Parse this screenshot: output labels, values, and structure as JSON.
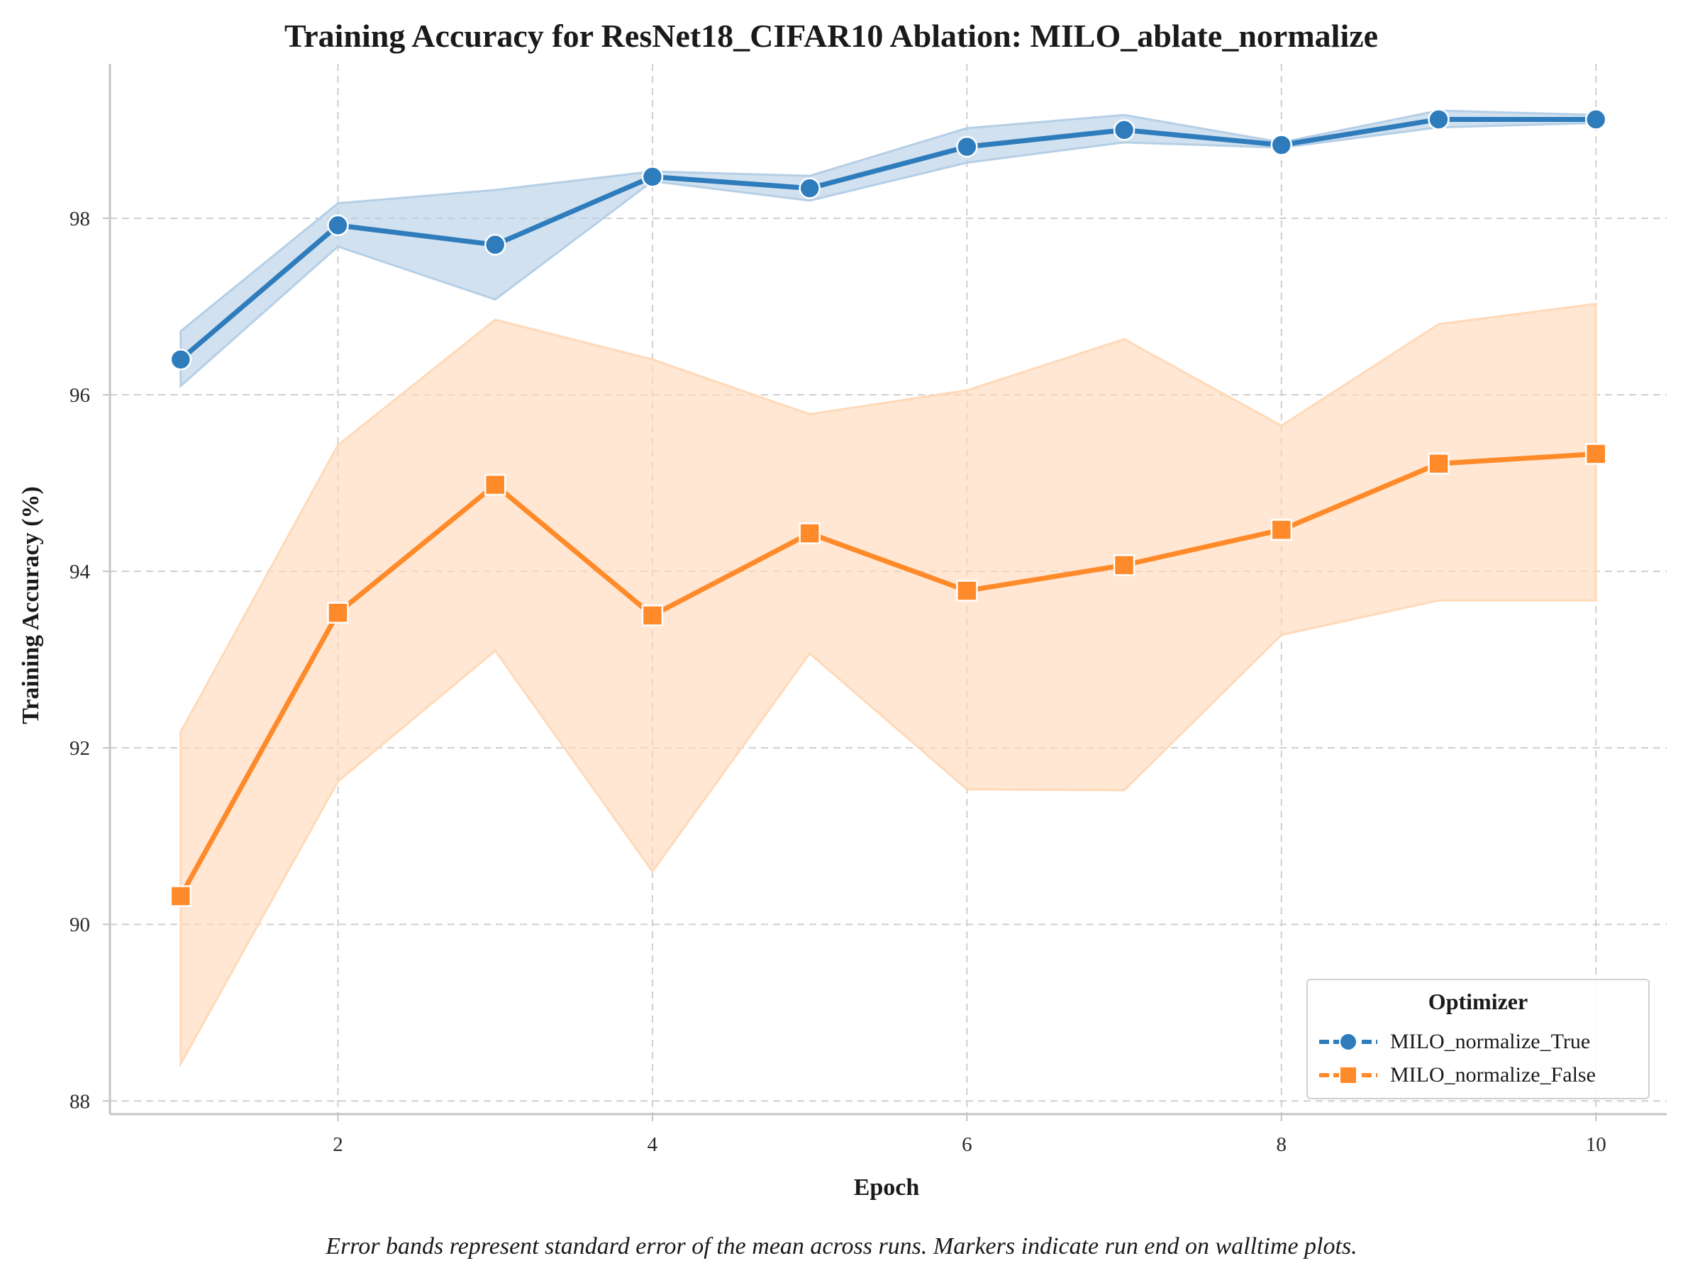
{
  "chart_data": {
    "type": "line",
    "title": "Training Accuracy for ResNet18_CIFAR10 Ablation: MILO_ablate_normalize",
    "xlabel": "Epoch",
    "ylabel": "Training Accuracy (%)",
    "xlim": [
      0.55,
      10.45
    ],
    "ylim": [
      87.85,
      99.75
    ],
    "x_ticks": [
      2,
      4,
      6,
      8,
      10
    ],
    "y_ticks": [
      88,
      90,
      92,
      94,
      96,
      98
    ],
    "grid": true,
    "legend": {
      "title": "Optimizer",
      "placement": "bottom-right"
    },
    "x": [
      1,
      2,
      3,
      4,
      5,
      6,
      7,
      8,
      9,
      10
    ],
    "series": [
      {
        "name": "MILO_normalize_True",
        "color": "#2f7cbc",
        "band_color": "#b5cfe6",
        "marker": "circle",
        "values": [
          96.4,
          97.92,
          97.7,
          98.47,
          98.34,
          98.81,
          99.0,
          98.83,
          99.12,
          99.12
        ],
        "lower": [
          96.1,
          97.68,
          97.08,
          98.42,
          98.2,
          98.63,
          98.86,
          98.8,
          99.03,
          99.08
        ],
        "upper": [
          96.72,
          98.17,
          98.32,
          98.53,
          98.48,
          99.02,
          99.17,
          98.86,
          99.22,
          99.17
        ]
      },
      {
        "name": "MILO_normalize_False",
        "color": "#ff8a2a",
        "band_color": "#ffd9b8",
        "marker": "square",
        "values": [
          90.32,
          93.53,
          94.98,
          93.5,
          94.43,
          93.78,
          94.07,
          94.47,
          95.22,
          95.33
        ],
        "lower": [
          88.42,
          91.62,
          93.1,
          90.6,
          93.07,
          91.53,
          91.52,
          93.28,
          93.67,
          93.67
        ],
        "upper": [
          92.18,
          95.43,
          96.85,
          96.4,
          95.78,
          96.05,
          96.63,
          95.65,
          96.8,
          97.03
        ]
      }
    ],
    "caption": "Error bands represent standard error of the mean across runs. Markers indicate run end on walltime plots."
  }
}
